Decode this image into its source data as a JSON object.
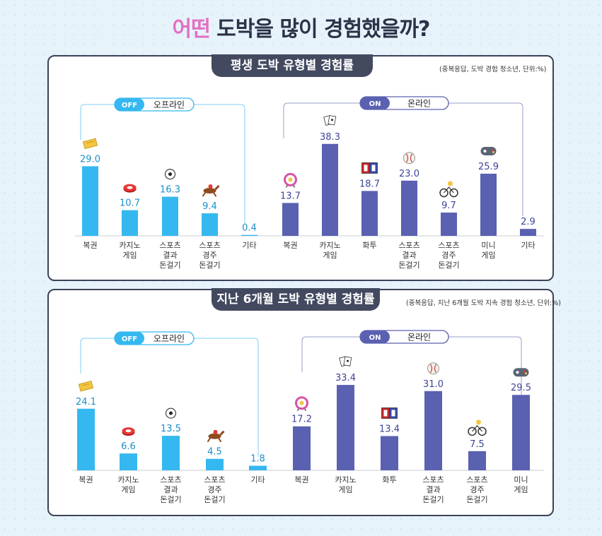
{
  "title": {
    "highlight": "어떤",
    "rest": " 도박을 많이 경험했을까?"
  },
  "colors": {
    "offline": "#35b8f0",
    "online": "#5a61b1",
    "offline_badge": "#35b8f0",
    "online_badge": "#5a61b1"
  },
  "chart_data": [
    {
      "type": "bar",
      "title": "평생 도박 유형별 경험률",
      "note": "(중복응답, 도박 경험 청소년, 단위:%)",
      "groups": [
        {
          "badge": "OFF",
          "label": "오프라인",
          "color": "#35b8f0",
          "categories": [
            "복권",
            "카지노\n게임",
            "스포츠\n결과\n돈걸기",
            "스포츠\n경주\n돈걸기",
            "기타"
          ],
          "values": [
            29.0,
            10.7,
            16.3,
            9.4,
            0.4
          ],
          "icons": [
            "lottery-ticket-icon",
            "casino-chip-icon",
            "soccer-ball-icon",
            "horse-racing-icon",
            null
          ]
        },
        {
          "badge": "ON",
          "label": "온라인",
          "color": "#5a61b1",
          "categories": [
            "복권",
            "카지노\n게임",
            "화투",
            "스포츠\n결과\n돈걸기",
            "스포츠\n경주\n돈걸기",
            "미니\n게임",
            "기타"
          ],
          "values": [
            13.7,
            38.3,
            18.7,
            23.0,
            9.7,
            25.9,
            2.9
          ],
          "icons": [
            "lottery-wheel-icon",
            "playing-cards-icon",
            "hwatu-cards-icon",
            "baseball-icon",
            "cycling-icon",
            "game-controller-icon",
            null
          ]
        }
      ],
      "ylim": [
        0,
        40
      ]
    },
    {
      "type": "bar",
      "title": "지난 6개월 도박 유형별 경험률",
      "note": "(중복응답, 지난 6개월 도박 지속 경험 청소년, 단위:%)",
      "groups": [
        {
          "badge": "OFF",
          "label": "오프라인",
          "color": "#35b8f0",
          "categories": [
            "복권",
            "카지노\n게임",
            "스포츠\n결과\n돈걸기",
            "스포츠\n경주\n돈걸기",
            "기타"
          ],
          "values": [
            24.1,
            6.6,
            13.5,
            4.5,
            1.8
          ],
          "icons": [
            "lottery-ticket-icon",
            "casino-chip-icon",
            "soccer-ball-icon",
            "horse-racing-icon",
            null
          ]
        },
        {
          "badge": "ON",
          "label": "온라인",
          "color": "#5a61b1",
          "categories": [
            "복권",
            "카지노\n게임",
            "화투",
            "스포츠\n결과\n돈걸기",
            "스포츠\n경주\n돈걸기",
            "미니\n게임"
          ],
          "values": [
            17.2,
            33.4,
            13.4,
            31.0,
            7.5,
            29.5
          ],
          "icons": [
            "lottery-wheel-icon",
            "playing-cards-icon",
            "hwatu-cards-icon",
            "baseball-icon",
            "cycling-icon",
            "game-controller-icon"
          ]
        }
      ],
      "ylim": [
        0,
        40
      ]
    }
  ]
}
